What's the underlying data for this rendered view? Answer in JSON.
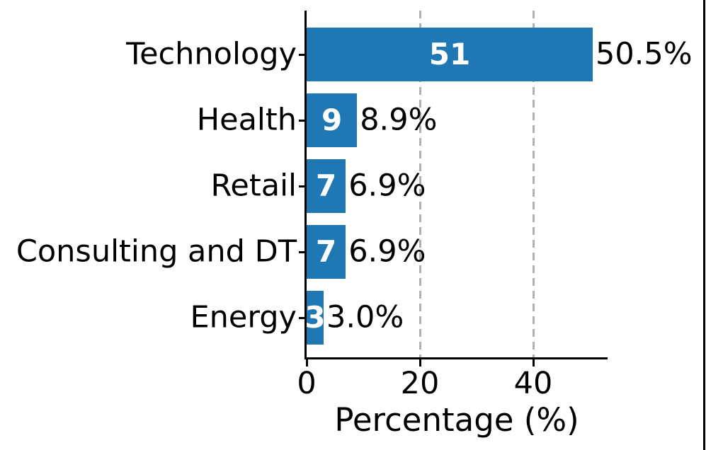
{
  "figure": {
    "background_color": "#ffffff",
    "right_edge_line_color": "#000000"
  },
  "chart_data": {
    "type": "bar",
    "orientation": "horizontal",
    "title": "",
    "xlabel": "Percentage (%)",
    "ylabel": "",
    "categories": [
      "Technology",
      "Health",
      "Retail",
      "Consulting and DT",
      "Energy"
    ],
    "series": [
      {
        "name": "Percentage",
        "values": [
          50.5,
          8.9,
          6.9,
          6.9,
          3.0
        ]
      }
    ],
    "counts": [
      51,
      9,
      7,
      7,
      3
    ],
    "count_labels": [
      "51",
      "9",
      "7",
      "7",
      "3"
    ],
    "value_labels": [
      "50.5%",
      "8.9%",
      "6.9%",
      "6.9%",
      "3.0%"
    ],
    "xticks": [
      0,
      20,
      40
    ],
    "xtick_labels": [
      "0",
      "20",
      "40"
    ],
    "xlim": [
      0,
      53
    ],
    "grid": {
      "axis": "x",
      "at": [
        20,
        40
      ],
      "style": "dashed",
      "color": "#b0b0b0"
    },
    "legend": null,
    "bar_color": "#1f77b4",
    "count_label_color": "#ffffff",
    "value_label_color": "#000000",
    "axis_color": "#000000"
  }
}
